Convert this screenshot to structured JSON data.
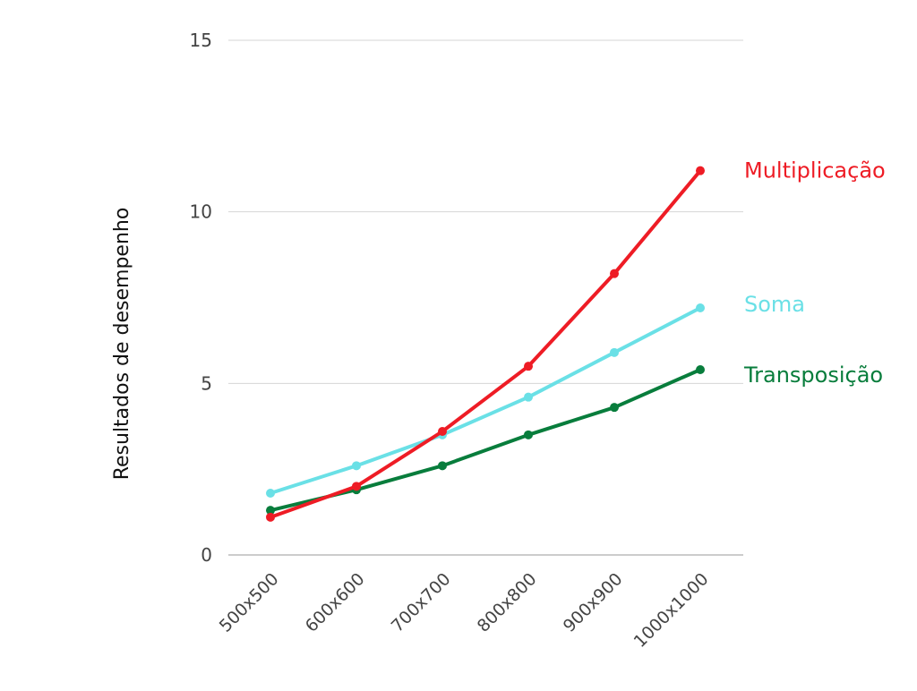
{
  "chart_data": {
    "type": "line",
    "title": "",
    "xlabel": "",
    "ylabel": "Resultados de desempenho",
    "categories": [
      "500x500",
      "600x600",
      "700x700",
      "800x800",
      "900x900",
      "1000x1000"
    ],
    "ylim": [
      0,
      15
    ],
    "yticks": [
      0,
      5,
      10,
      15
    ],
    "ytick_labels": [
      "0",
      "5",
      "10",
      "15"
    ],
    "grid": true,
    "legend": "direct labels at right end of lines",
    "series": [
      {
        "name": "Multiplicação",
        "color": "#ee1c25",
        "values": [
          1.1,
          2.0,
          3.6,
          5.5,
          8.2,
          11.2
        ]
      },
      {
        "name": "Soma",
        "color": "#6ae0e6",
        "values": [
          1.8,
          2.6,
          3.5,
          4.6,
          5.9,
          7.2
        ]
      },
      {
        "name": "Transposição",
        "color": "#087d3c",
        "values": [
          1.3,
          1.9,
          2.6,
          3.5,
          4.3,
          5.4
        ]
      }
    ]
  }
}
